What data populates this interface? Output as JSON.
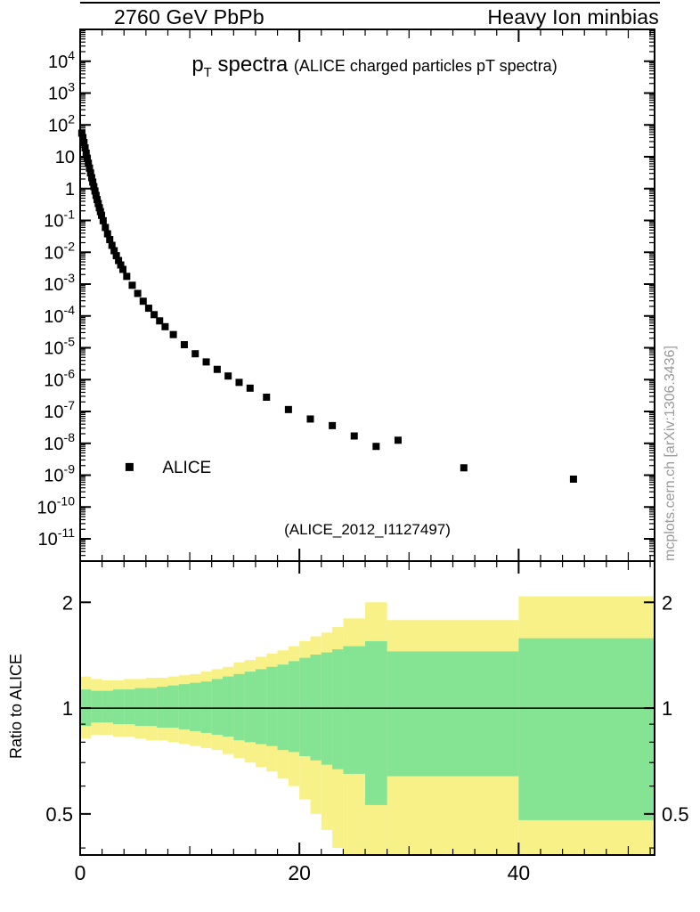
{
  "header": {
    "left": "2760 GeV PbPb",
    "right": "Heavy Ion minbias"
  },
  "watermark": "mcplots.cern.ch [arXiv:1306.3436]",
  "chart_data": {
    "type": "scatter",
    "title": {
      "symbol": "p",
      "subscript": "T",
      "text": " spectra ",
      "detail": "(ALICE charged particles pT spectra)"
    },
    "analysis_tag": "(ALICE_2012_I1127497)",
    "legend": [
      {
        "label": "ALICE",
        "marker": "filled-square",
        "color": "#000000"
      }
    ],
    "x": {
      "min": 0,
      "max": 52.4,
      "ticks": [
        0,
        20,
        40
      ],
      "minor_step": 2
    },
    "top_panel": {
      "yscale": "log",
      "ymin": 2e-12,
      "ymax": 100000.0,
      "ytick_exponents": [
        4,
        3,
        2,
        1,
        0,
        -1,
        -2,
        -3,
        -4,
        -5,
        -6,
        -7,
        -8,
        -9,
        -10,
        -11
      ],
      "series": {
        "name": "ALICE",
        "marker_color": "#000000",
        "points": [
          [
            0.15,
            55
          ],
          [
            0.25,
            40
          ],
          [
            0.35,
            28
          ],
          [
            0.45,
            19
          ],
          [
            0.55,
            13
          ],
          [
            0.65,
            9.0
          ],
          [
            0.75,
            6.3
          ],
          [
            0.85,
            4.4
          ],
          [
            0.95,
            3.1
          ],
          [
            1.05,
            2.2
          ],
          [
            1.15,
            1.6
          ],
          [
            1.25,
            1.15
          ],
          [
            1.35,
            0.84
          ],
          [
            1.45,
            0.61
          ],
          [
            1.55,
            0.45
          ],
          [
            1.65,
            0.34
          ],
          [
            1.75,
            0.25
          ],
          [
            1.85,
            0.19
          ],
          [
            1.95,
            0.145
          ],
          [
            2.1,
            0.098
          ],
          [
            2.3,
            0.06
          ],
          [
            2.5,
            0.038
          ],
          [
            2.7,
            0.025
          ],
          [
            2.9,
            0.0165
          ],
          [
            3.1,
            0.0112
          ],
          [
            3.3,
            0.0078
          ],
          [
            3.5,
            0.0055
          ],
          [
            3.7,
            0.004
          ],
          [
            3.9,
            0.0029
          ],
          [
            4.25,
            0.00175
          ],
          [
            4.75,
            0.00092
          ],
          [
            5.25,
            0.00051
          ],
          [
            5.75,
            0.00029
          ],
          [
            6.25,
            0.000175
          ],
          [
            6.75,
            0.00011
          ],
          [
            7.25,
            7e-05
          ],
          [
            7.75,
            4.6e-05
          ],
          [
            8.5,
            2.6e-05
          ],
          [
            9.5,
            1.25e-05
          ],
          [
            10.5,
            6.5e-06
          ],
          [
            11.5,
            3.6e-06
          ],
          [
            12.5,
            2.1e-06
          ],
          [
            13.5,
            1.3e-06
          ],
          [
            14.5,
            8.2e-07
          ],
          [
            15.5,
            5.4e-07
          ],
          [
            17,
            2.8e-07
          ],
          [
            19,
            1.15e-07
          ],
          [
            21,
            5.8e-08
          ],
          [
            23,
            3.6e-08
          ],
          [
            25,
            1.7e-08
          ],
          [
            27,
            8e-09
          ],
          [
            29,
            1.25e-08
          ],
          [
            35,
            1.7e-09
          ],
          [
            45,
            7.5e-10
          ]
        ]
      }
    },
    "ratio_panel": {
      "ylabel": "Ratio to ALICE",
      "yscale": "log",
      "ymin": 0.382,
      "ymax": 2.62,
      "yticks": [
        2,
        1,
        0.5
      ],
      "reference_line": 1,
      "bands": [
        {
          "name": "total-uncertainty",
          "color": "#f7f188",
          "bins": [
            [
              0,
              1,
              0.82,
              1.23
            ],
            [
              1,
              2,
              0.84,
              1.21
            ],
            [
              2,
              3,
              0.84,
              1.2
            ],
            [
              3,
              4,
              0.83,
              1.2
            ],
            [
              4,
              5,
              0.83,
              1.21
            ],
            [
              5,
              6,
              0.82,
              1.21
            ],
            [
              6,
              7,
              0.81,
              1.22
            ],
            [
              7,
              8,
              0.81,
              1.22
            ],
            [
              8,
              9,
              0.8,
              1.23
            ],
            [
              9,
              10,
              0.79,
              1.24
            ],
            [
              10,
              11,
              0.78,
              1.25
            ],
            [
              11,
              12,
              0.77,
              1.27
            ],
            [
              12,
              13,
              0.76,
              1.29
            ],
            [
              13,
              14,
              0.74,
              1.31
            ],
            [
              14,
              15,
              0.72,
              1.35
            ],
            [
              15,
              16,
              0.7,
              1.37
            ],
            [
              16,
              17,
              0.68,
              1.4
            ],
            [
              17,
              18,
              0.66,
              1.43
            ],
            [
              18,
              19,
              0.63,
              1.46
            ],
            [
              19,
              20,
              0.6,
              1.5
            ],
            [
              20,
              21,
              0.55,
              1.55
            ],
            [
              21,
              22,
              0.5,
              1.6
            ],
            [
              22,
              23,
              0.45,
              1.64
            ],
            [
              23,
              24,
              0.4,
              1.7
            ],
            [
              24,
              26,
              0.36,
              1.8
            ],
            [
              26,
              28,
              0.36,
              2.0
            ],
            [
              28,
              40,
              0.36,
              1.78
            ],
            [
              40,
              52.4,
              0.36,
              2.08
            ]
          ]
        },
        {
          "name": "statistical-uncertainty",
          "color": "#85e394",
          "bins": [
            [
              0,
              1,
              0.89,
              1.13
            ],
            [
              1,
              2,
              0.91,
              1.12
            ],
            [
              2,
              3,
              0.91,
              1.12
            ],
            [
              3,
              4,
              0.9,
              1.13
            ],
            [
              4,
              5,
              0.9,
              1.13
            ],
            [
              5,
              6,
              0.89,
              1.14
            ],
            [
              6,
              7,
              0.89,
              1.14
            ],
            [
              7,
              8,
              0.88,
              1.15
            ],
            [
              8,
              9,
              0.88,
              1.16
            ],
            [
              9,
              10,
              0.87,
              1.17
            ],
            [
              10,
              11,
              0.86,
              1.18
            ],
            [
              11,
              12,
              0.85,
              1.19
            ],
            [
              12,
              13,
              0.84,
              1.21
            ],
            [
              13,
              14,
              0.83,
              1.23
            ],
            [
              14,
              15,
              0.81,
              1.25
            ],
            [
              15,
              16,
              0.8,
              1.27
            ],
            [
              16,
              17,
              0.79,
              1.29
            ],
            [
              17,
              18,
              0.78,
              1.31
            ],
            [
              18,
              19,
              0.76,
              1.33
            ],
            [
              19,
              20,
              0.75,
              1.36
            ],
            [
              20,
              21,
              0.73,
              1.39
            ],
            [
              21,
              22,
              0.71,
              1.42
            ],
            [
              22,
              23,
              0.69,
              1.44
            ],
            [
              23,
              24,
              0.67,
              1.47
            ],
            [
              24,
              26,
              0.65,
              1.5
            ],
            [
              26,
              28,
              0.53,
              1.55
            ],
            [
              28,
              40,
              0.64,
              1.45
            ],
            [
              40,
              52.4,
              0.48,
              1.58
            ]
          ]
        }
      ]
    }
  }
}
